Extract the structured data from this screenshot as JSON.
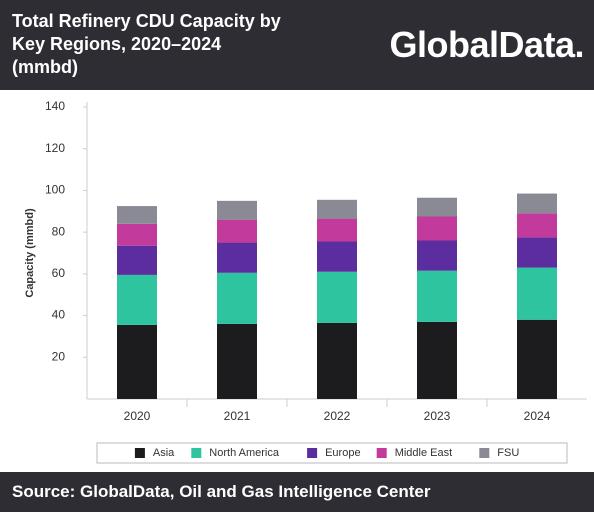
{
  "title": "Total Refinery CDU Capacity by Key Regions, 2020–2024 (mmbd)",
  "logo": "GlobalData.",
  "source": "Source: GlobalData, Oil and Gas Intelligence Center",
  "chart_data": {
    "type": "stacked_bar",
    "categories": [
      "2020",
      "2021",
      "2022",
      "2023",
      "2024"
    ],
    "ylabel": "Capacity (mmbd)",
    "ylim": [
      0,
      140
    ],
    "yticks": [
      20,
      40,
      60,
      80,
      100,
      120,
      140
    ],
    "series": [
      {
        "name": "Asia",
        "color": "#1c1c1e",
        "values": [
          35.5,
          36,
          36.5,
          37,
          38
        ]
      },
      {
        "name": "North America",
        "color": "#2ec4a0",
        "values": [
          24,
          24.5,
          24.5,
          24.5,
          25
        ]
      },
      {
        "name": "Europe",
        "color": "#5b2d9e",
        "values": [
          14,
          14.5,
          14.5,
          14.5,
          14.5
        ]
      },
      {
        "name": "Middle East",
        "color": "#c23a9c",
        "values": [
          10.5,
          11,
          11,
          11.5,
          11.5
        ]
      },
      {
        "name": "FSU",
        "color": "#8a8a94",
        "values": [
          8.5,
          9,
          9,
          9,
          9.5
        ]
      }
    ]
  }
}
